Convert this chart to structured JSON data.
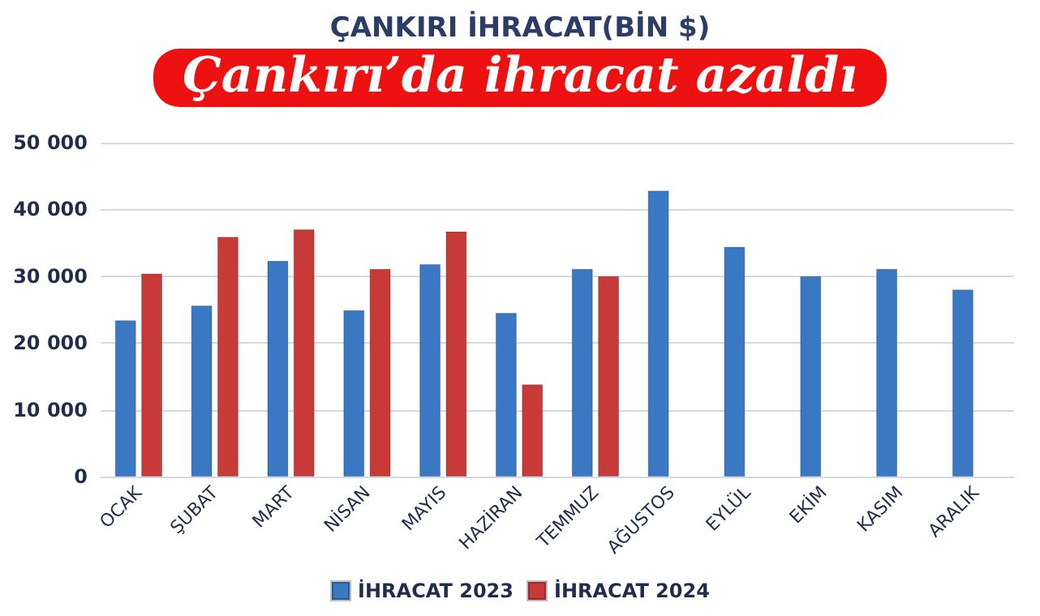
{
  "chart_data": {
    "type": "bar",
    "title": "Çankırı’da ihracat azaldı",
    "subtitle": "ÇANKIRI İHRACAT(BİN $)",
    "categories": [
      "OCAK",
      "ŞUBAT",
      "MART",
      "NİSAN",
      "MAYIS",
      "HAZİRAN",
      "TEMMUZ",
      "AĞUSTOS",
      "EYLÜL",
      "EKİM",
      "KASIM",
      "ARALIK"
    ],
    "series": [
      {
        "name": "İHRACAT 2023",
        "color": "#3a78c4",
        "values": [
          23400,
          25600,
          32300,
          24900,
          31800,
          24500,
          31100,
          42800,
          34400,
          30000,
          31100,
          28000
        ]
      },
      {
        "name": "İHRACAT 2024",
        "color": "#c83a38",
        "values": [
          30400,
          35900,
          37000,
          31100,
          36700,
          13800,
          30000,
          null,
          null,
          null,
          null,
          null
        ]
      }
    ],
    "ylim": [
      0,
      50000
    ],
    "yticks": [
      {
        "value": 0,
        "label": "0"
      },
      {
        "value": 10000,
        "label": "10 000"
      },
      {
        "value": 20000,
        "label": "20 000"
      },
      {
        "value": 30000,
        "label": "30 000"
      },
      {
        "value": 40000,
        "label": "40 000"
      },
      {
        "value": 50000,
        "label": "50 000"
      }
    ],
    "grid": "y",
    "legend": "bottom"
  }
}
